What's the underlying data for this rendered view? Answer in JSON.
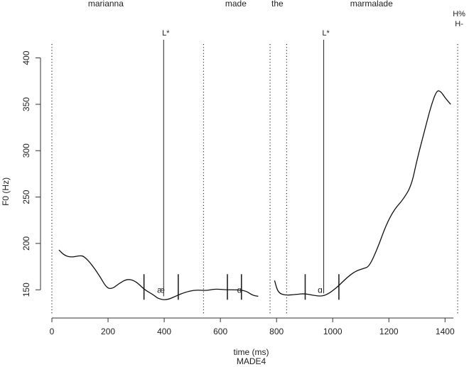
{
  "chart_data": {
    "type": "line",
    "xlabel": "time (ms)",
    "ylabel": "F0 (Hz)",
    "caption": "MADE4",
    "xlim": [
      0,
      1460
    ],
    "ylim": [
      128,
      415
    ],
    "x_ticks": [
      0,
      200,
      400,
      600,
      800,
      1000,
      1200,
      1400
    ],
    "y_ticks": [
      150,
      200,
      250,
      300,
      350,
      400
    ],
    "words": [
      {
        "label": "marianna",
        "x": 192
      },
      {
        "label": "made",
        "x": 655
      },
      {
        "label": "the",
        "x": 803
      },
      {
        "label": "marmalade",
        "x": 1138
      }
    ],
    "word_boundaries": [
      {
        "x": 0,
        "style": "dotted"
      },
      {
        "x": 540,
        "style": "dotted"
      },
      {
        "x": 777,
        "style": "dotted"
      },
      {
        "x": 836,
        "style": "dotted"
      },
      {
        "x": 1445,
        "style": "dotted"
      }
    ],
    "tones": [
      {
        "label": "L*",
        "x": 398,
        "line_top_y": 420,
        "line_bottom_y": 140
      },
      {
        "label": "L*",
        "x": 968,
        "line_top_y": 420,
        "line_bottom_y": 143
      }
    ],
    "boundary_tone": {
      "labels": [
        "H%",
        "H-"
      ],
      "x": 1445
    },
    "segments": [
      {
        "label": "æ",
        "x_start": 328,
        "x_end": 450,
        "y": 150
      },
      {
        "label": "ɑ",
        "x_start": 625,
        "x_end": 675,
        "y": 150
      },
      {
        "label": "ɑ",
        "x_start": 902,
        "x_end": 1022,
        "y": 150
      }
    ],
    "series": [
      {
        "points": [
          [
            25,
            193
          ],
          [
            45,
            187
          ],
          [
            70,
            185
          ],
          [
            100,
            187
          ],
          [
            115,
            186
          ],
          [
            140,
            178
          ],
          [
            170,
            165
          ],
          [
            195,
            152
          ],
          [
            215,
            151
          ],
          [
            240,
            157
          ],
          [
            270,
            162
          ],
          [
            300,
            159
          ],
          [
            330,
            150
          ],
          [
            360,
            145
          ],
          [
            380,
            140
          ],
          [
            410,
            139
          ],
          [
            440,
            143
          ],
          [
            470,
            147
          ],
          [
            510,
            150
          ],
          [
            550,
            149
          ],
          [
            580,
            151
          ],
          [
            620,
            150
          ],
          [
            660,
            150
          ],
          [
            690,
            149
          ],
          [
            715,
            144
          ],
          [
            735,
            143
          ]
        ]
      },
      {
        "points": [
          [
            793,
            160
          ],
          [
            805,
            147
          ],
          [
            830,
            144
          ],
          [
            870,
            145
          ],
          [
            900,
            146
          ],
          [
            930,
            144
          ],
          [
            960,
            143
          ],
          [
            980,
            145
          ],
          [
            1000,
            149
          ],
          [
            1020,
            154
          ],
          [
            1050,
            163
          ],
          [
            1080,
            170
          ],
          [
            1110,
            173
          ],
          [
            1130,
            175
          ],
          [
            1160,
            195
          ],
          [
            1190,
            220
          ],
          [
            1220,
            237
          ],
          [
            1250,
            247
          ],
          [
            1280,
            262
          ],
          [
            1300,
            290
          ],
          [
            1330,
            325
          ],
          [
            1350,
            348
          ],
          [
            1370,
            365
          ],
          [
            1385,
            364
          ],
          [
            1400,
            357
          ],
          [
            1420,
            350
          ]
        ]
      }
    ]
  }
}
